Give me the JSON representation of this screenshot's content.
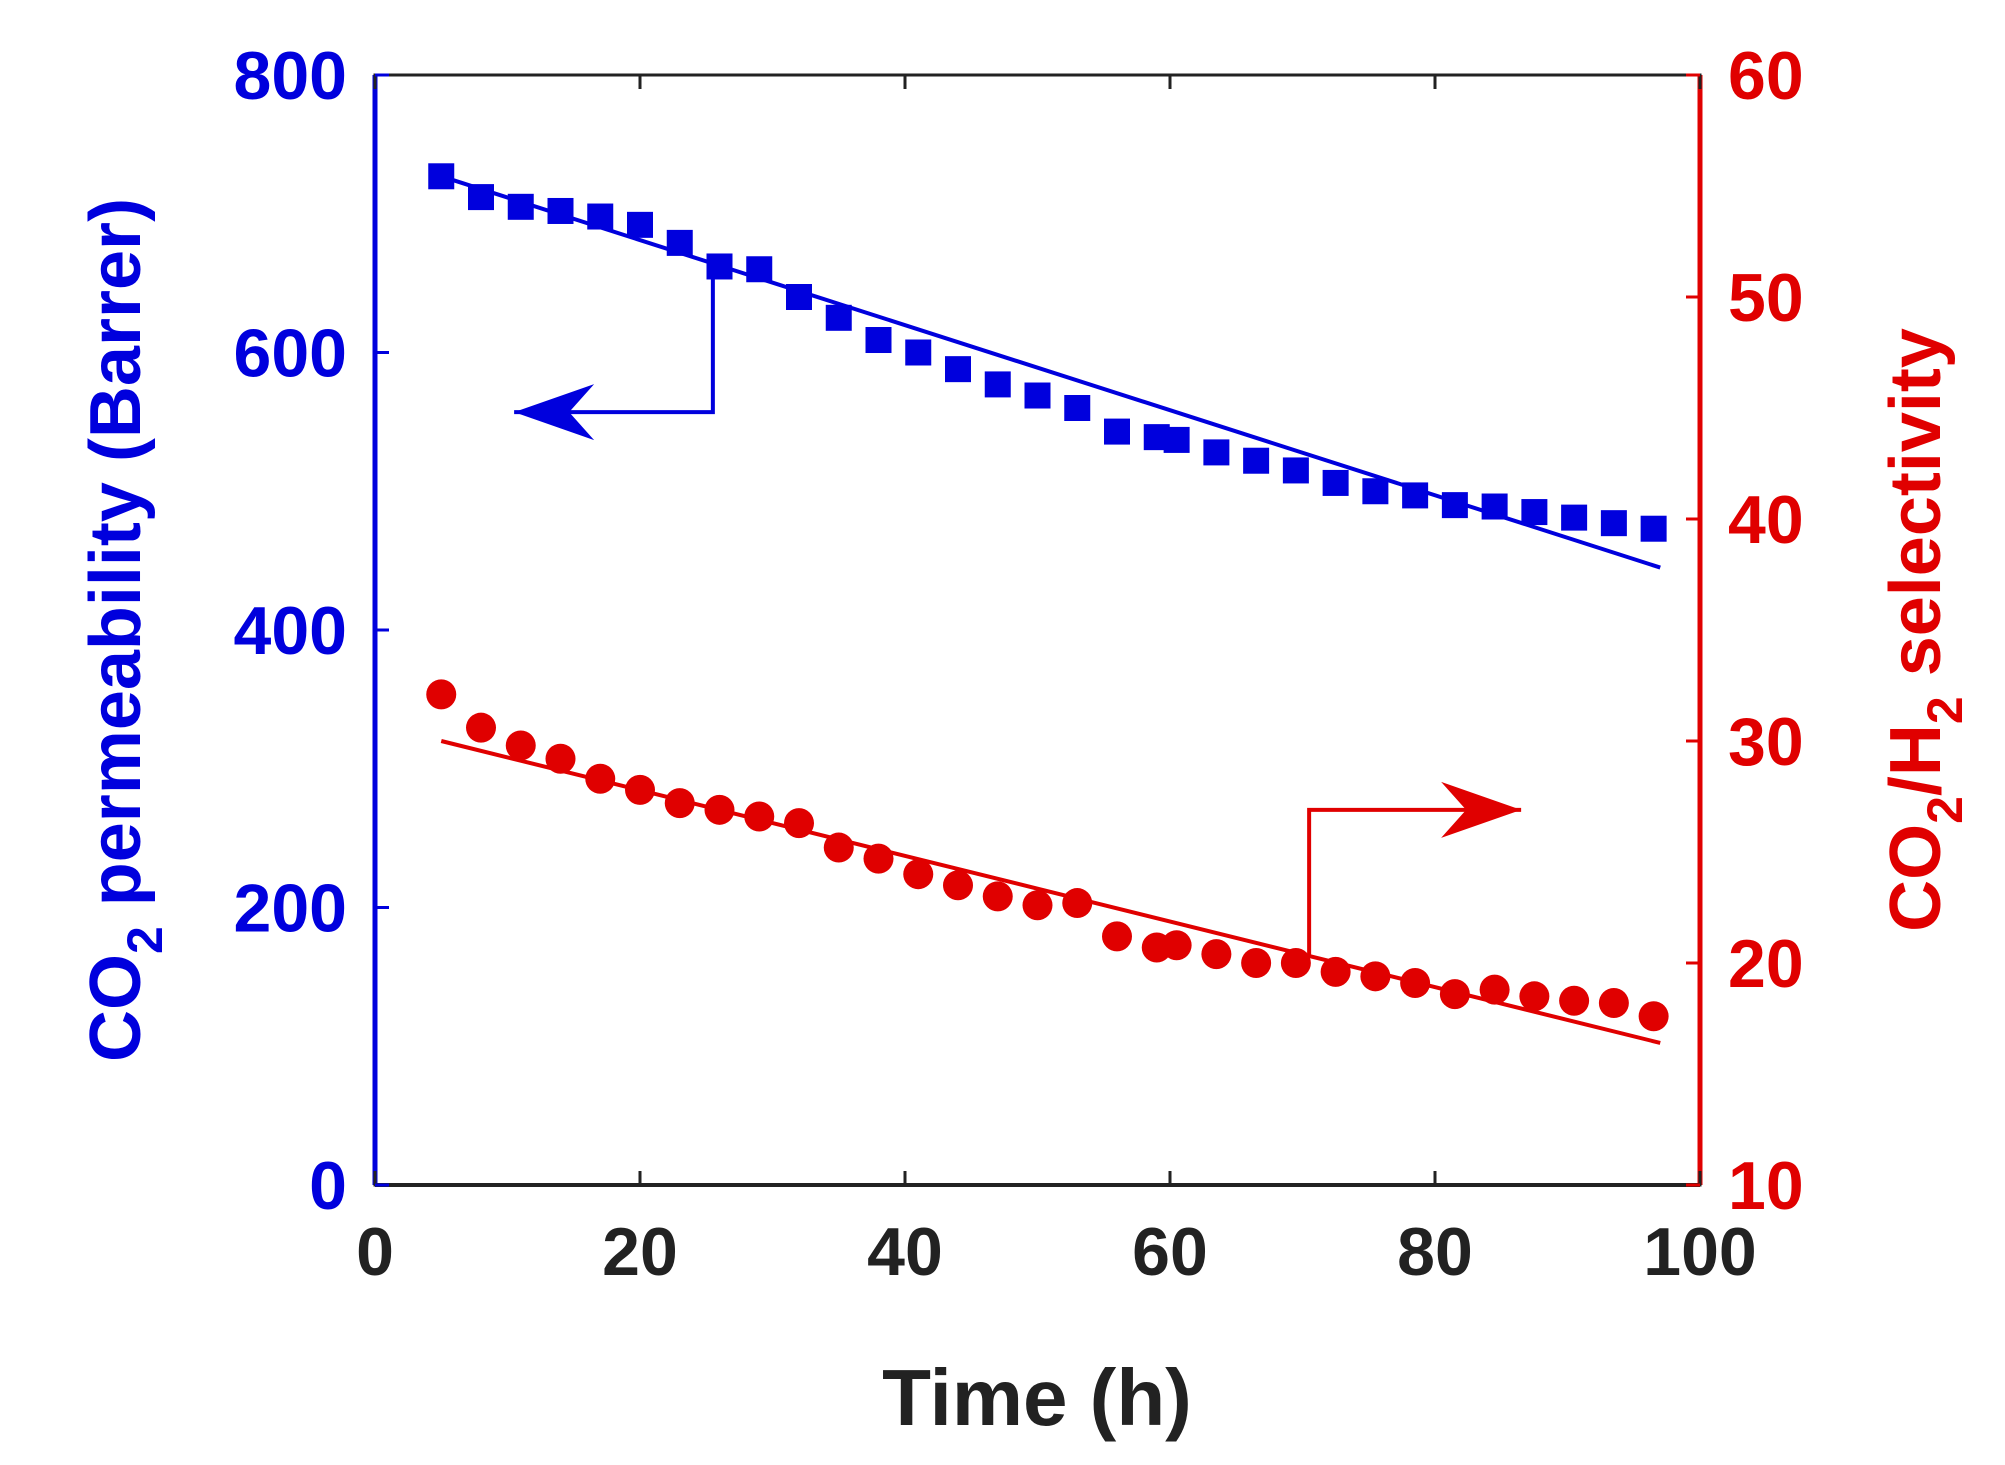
{
  "chart_data": {
    "type": "scatter",
    "title": "",
    "xlabel": "Time (h)",
    "xlim": [
      0,
      100
    ],
    "xticks": [
      "0",
      "20",
      "40",
      "60",
      "80",
      "100"
    ],
    "ylabel_left": {
      "base": "CO",
      "sub": "2",
      "rest": " permeability (Barrer)"
    },
    "ylim_left": [
      0,
      800
    ],
    "yticks_left": [
      "0",
      "200",
      "400",
      "600",
      "800"
    ],
    "ylabel_right": {
      "p1": "CO",
      "s1": "2",
      "p2": "/H",
      "s2": "2",
      "p3": " selectivity"
    },
    "ylim_right": [
      10,
      60
    ],
    "yticks_right": [
      "10",
      "20",
      "30",
      "40",
      "50",
      "60"
    ],
    "grid": false,
    "colors": {
      "left": "#0000dd",
      "right": "#e00000",
      "axis": "#222222"
    },
    "series": [
      {
        "name": "CO2 permeability",
        "axis": "left",
        "marker": "square",
        "color": "#0000dd",
        "x": [
          5,
          8,
          11,
          14,
          17,
          20,
          23,
          26,
          29,
          32,
          35,
          38,
          41,
          44,
          47,
          50,
          53,
          56,
          59,
          60.5,
          63.5,
          66.5,
          69.5,
          72.5,
          75.5,
          78.5,
          81.5,
          84.5,
          87.5,
          90.5,
          93.5,
          96.5
        ],
        "y": [
          727,
          712,
          705,
          702,
          698,
          692,
          679,
          662,
          660,
          640,
          625,
          609,
          600,
          588,
          577,
          569,
          560,
          543,
          539,
          537,
          528,
          522,
          515,
          506,
          500,
          497,
          490,
          489,
          485,
          481,
          477,
          473
        ]
      },
      {
        "name": "CO2/H2 selectivity",
        "axis": "right",
        "marker": "circle",
        "color": "#e00000",
        "x": [
          5,
          8,
          11,
          14,
          17,
          20,
          23,
          26,
          29,
          32,
          35,
          38,
          41,
          44,
          47,
          50,
          53,
          56,
          59,
          60.5,
          63.5,
          66.5,
          69.5,
          72.5,
          75.5,
          78.5,
          81.5,
          84.5,
          87.5,
          90.5,
          93.5,
          96.5
        ],
        "y": [
          32.1,
          30.6,
          29.8,
          29.2,
          28.3,
          27.8,
          27.2,
          26.9,
          26.6,
          26.3,
          25.2,
          24.7,
          24.0,
          23.5,
          23.0,
          22.6,
          22.7,
          21.2,
          20.7,
          20.8,
          20.4,
          20.0,
          20.0,
          19.6,
          19.4,
          19.1,
          18.6,
          18.8,
          18.5,
          18.3,
          18.2,
          17.6
        ]
      }
    ],
    "fits": [
      {
        "axis": "left",
        "color": "#0000dd",
        "x": [
          5,
          97
        ],
        "y": [
          727,
          445
        ]
      },
      {
        "axis": "right",
        "color": "#e00000",
        "x": [
          5,
          97
        ],
        "y": [
          30.0,
          16.4
        ]
      }
    ],
    "annotations": [
      {
        "axis": "left",
        "direction": "left",
        "path": [
          [
            25.5,
            658
          ],
          [
            25.5,
            557
          ],
          [
            10.5,
            557
          ]
        ]
      },
      {
        "axis": "right",
        "direction": "right",
        "path": [
          [
            70.5,
            20.3
          ],
          [
            70.5,
            26.9
          ],
          [
            86.5,
            26.9
          ]
        ]
      }
    ]
  }
}
